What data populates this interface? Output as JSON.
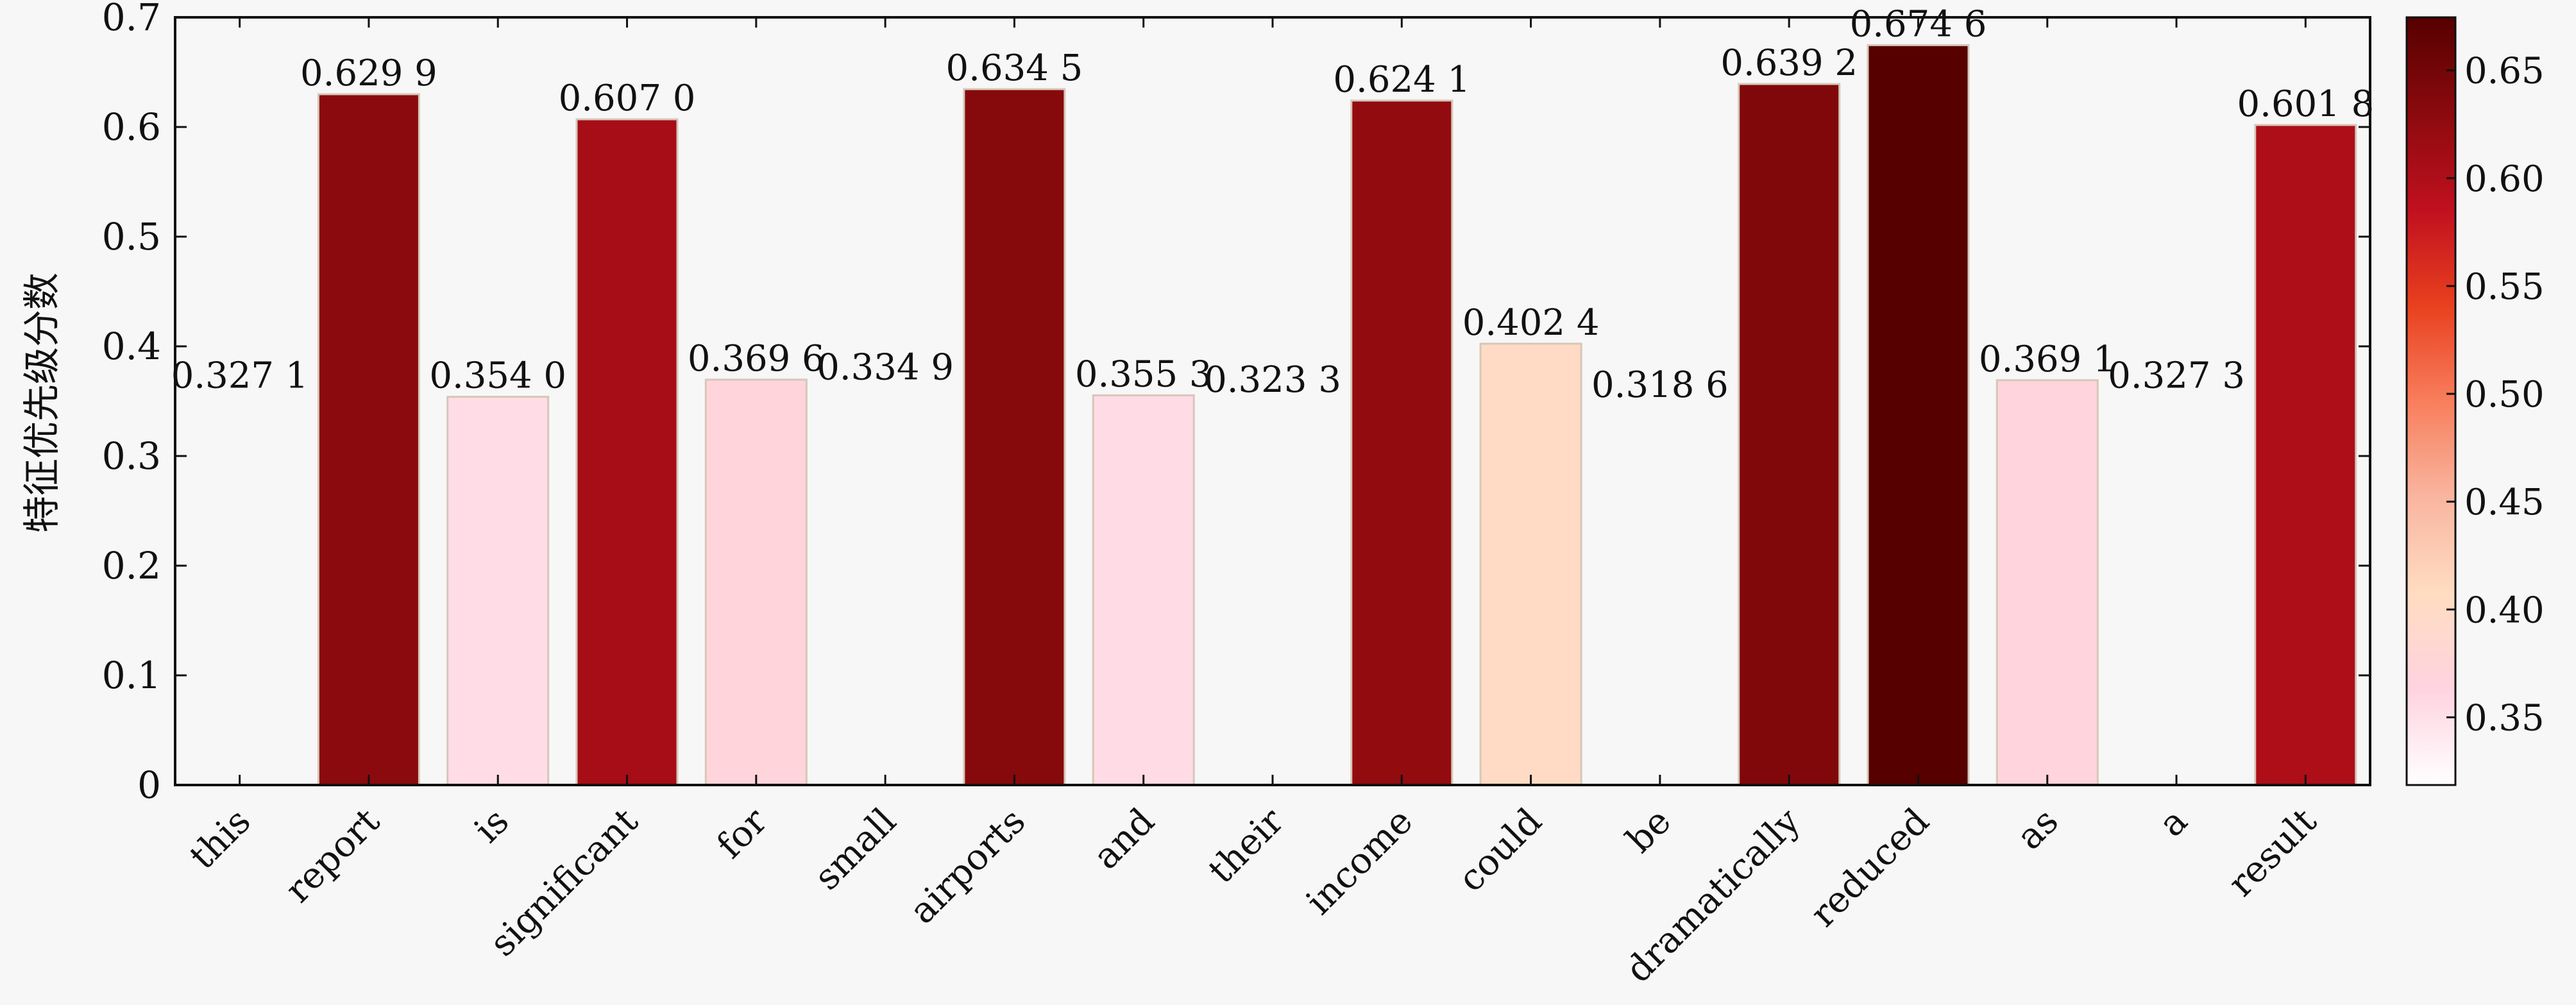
{
  "chart_data": {
    "type": "bar",
    "ylabel": "特征优先级分数",
    "ylim": [
      0,
      0.7
    ],
    "y_ticks": [
      {
        "value": 0,
        "label": "0"
      },
      {
        "value": 0.1,
        "label": "0.1"
      },
      {
        "value": 0.2,
        "label": "0.2"
      },
      {
        "value": 0.3,
        "label": "0.3"
      },
      {
        "value": 0.4,
        "label": "0.4"
      },
      {
        "value": 0.5,
        "label": "0.5"
      },
      {
        "value": 0.6,
        "label": "0.6"
      },
      {
        "value": 0.7,
        "label": "0.7"
      }
    ],
    "categories": [
      "this",
      "report",
      "is",
      "significant",
      "for",
      "small",
      "airports",
      "and",
      "their",
      "income",
      "could",
      "be",
      "dramatically",
      "reduced",
      "as",
      "a",
      "result"
    ],
    "values": [
      0.3271,
      0.6299,
      0.354,
      0.607,
      0.3696,
      0.3349,
      0.6345,
      0.3553,
      0.3233,
      0.6241,
      0.4024,
      0.3186,
      0.6392,
      0.6746,
      0.3691,
      0.3273,
      0.6018
    ],
    "data_labels": [
      "0.327 1",
      "0.629 9",
      "0.354 0",
      "0.607 0",
      "0.369 6",
      "0.334 9",
      "0.634 5",
      "0.355 3",
      "0.323 3",
      "0.624 1",
      "0.402 4",
      "0.318 6",
      "0.639 2",
      "0.674 6",
      "0.369 1",
      "0.327 3",
      "0.601 8"
    ],
    "grid": false,
    "legend": "none",
    "colorbar": {
      "range": [
        0.3186,
        0.6746
      ],
      "ticks": [
        {
          "value": 0.35,
          "label": "0.35"
        },
        {
          "value": 0.4,
          "label": "0.40"
        },
        {
          "value": 0.45,
          "label": "0.45"
        },
        {
          "value": 0.5,
          "label": "0.50"
        },
        {
          "value": 0.55,
          "label": "0.55"
        },
        {
          "value": 0.6,
          "label": "0.60"
        },
        {
          "value": 0.65,
          "label": "0.65"
        }
      ],
      "colormap": "Reds",
      "colors": [
        "#ffffff",
        "#ffd3e0",
        "#ffdcc1",
        "#f9b5a0",
        "#f87e5c",
        "#e8401f",
        "#c0101f",
        "#8b0a0d",
        "#560000"
      ]
    }
  }
}
